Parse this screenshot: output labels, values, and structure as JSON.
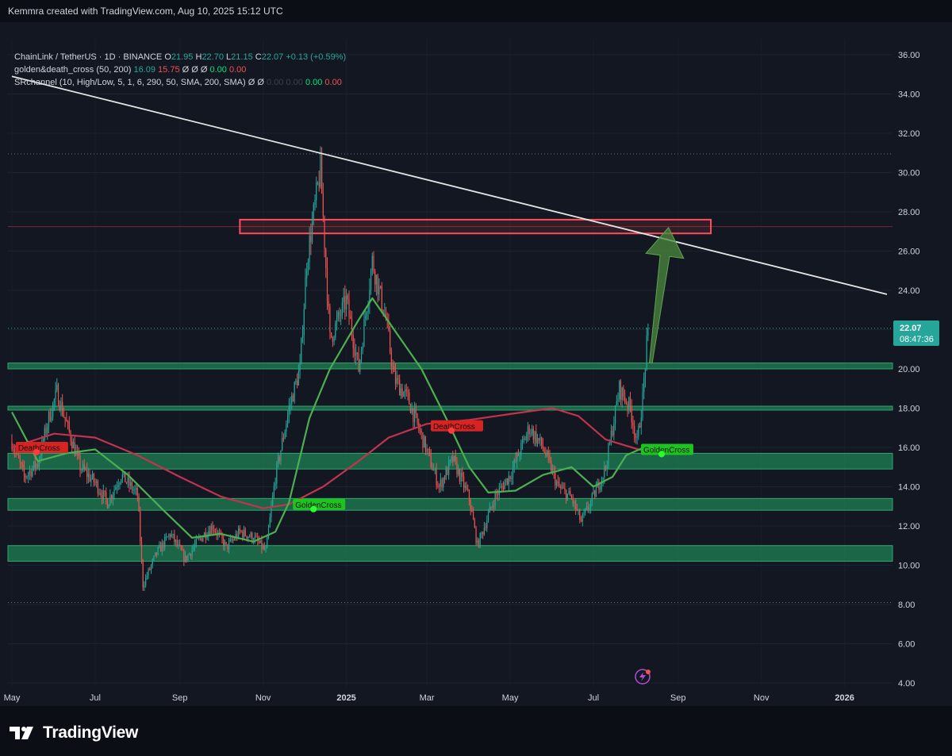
{
  "header": {
    "title": "Kemmra created with TradingView.com, Aug 10, 2025 15:12 UTC"
  },
  "legend": {
    "symbol": "ChainLink / TetherUS · 1D · BINANCE",
    "o_label": "O",
    "o_value": "21.95",
    "h_label": "H",
    "h_value": "22.70",
    "l_label": "L",
    "l_value": "21.15",
    "c_label": "C",
    "c_value": "22.07",
    "change": "+0.13 (+0.59%)",
    "ind1_name": "golden&death_cross (50, 200)",
    "ind1_v1": "16.09",
    "ind1_v2": "15.75",
    "ind1_sym": "Ø Ø Ø",
    "ind1_v3": "0.00",
    "ind1_v4": "0.00",
    "ind2_name": "SRchannel (10, High/Low, 5, 1, 6, 290, 50, SMA, 200, SMA)",
    "ind2_sym": "Ø Ø",
    "ind2_v1": "0.00",
    "ind2_v2": "0.00",
    "ind2_v3": "0.00",
    "ind2_v4": "0.00"
  },
  "price_label": {
    "price": "22.07",
    "countdown": "08:47:36"
  },
  "colors": {
    "background": "#131722",
    "up": "#26a69a",
    "down": "#ef5350",
    "ma50": "#4caf50",
    "ma200": "#c2334d",
    "zone": "#1f7a52",
    "resistance": "#ff4d5e",
    "trendline": "#e6e6e6",
    "arrow": "#4c8a3f",
    "accent": "#26a69a"
  },
  "brand": {
    "name": "TradingView"
  },
  "chart_data": {
    "type": "candlestick",
    "symbol": "LINK/USDT",
    "timeframe": "1D",
    "exchange": "BINANCE",
    "y_axis": {
      "min": 4,
      "max": 36,
      "ticks": [
        "4.00",
        "6.00",
        "8.00",
        "10.00",
        "12.00",
        "14.00",
        "16.00",
        "18.00",
        "20.00",
        "22.00",
        "24.00",
        "26.00",
        "28.00",
        "30.00",
        "32.00",
        "34.00",
        "36.00"
      ]
    },
    "x_axis": {
      "range": [
        "2024-05-01",
        "2026-02-01"
      ],
      "ticks": [
        "May",
        "Jul",
        "Sep",
        "Nov",
        "2025",
        "Mar",
        "May",
        "Jul",
        "Sep",
        "Nov",
        "2026"
      ]
    },
    "last": {
      "open": 21.95,
      "high": 22.7,
      "low": 21.15,
      "close": 22.07,
      "change": 0.13,
      "change_pct": 0.59
    },
    "price_path": [
      [
        "2024-05-01",
        16.3
      ],
      [
        "2024-05-10",
        14.5
      ],
      [
        "2024-05-20",
        15.2
      ],
      [
        "2024-05-28",
        17.5
      ],
      [
        "2024-06-03",
        18.8
      ],
      [
        "2024-06-10",
        17.2
      ],
      [
        "2024-06-20",
        15.0
      ],
      [
        "2024-07-01",
        14.2
      ],
      [
        "2024-07-10",
        13.2
      ],
      [
        "2024-07-20",
        14.6
      ],
      [
        "2024-08-01",
        13.6
      ],
      [
        "2024-08-05",
        9.0
      ],
      [
        "2024-08-15",
        10.6
      ],
      [
        "2024-08-25",
        11.6
      ],
      [
        "2024-09-05",
        10.3
      ],
      [
        "2024-09-15",
        11.3
      ],
      [
        "2024-09-25",
        12.0
      ],
      [
        "2024-10-05",
        10.9
      ],
      [
        "2024-10-15",
        11.7
      ],
      [
        "2024-10-25",
        11.4
      ],
      [
        "2024-11-03",
        10.7
      ],
      [
        "2024-11-10",
        14.5
      ],
      [
        "2024-11-20",
        18.0
      ],
      [
        "2024-11-28",
        20.0
      ],
      [
        "2024-12-03",
        25.5
      ],
      [
        "2024-12-13",
        30.2
      ],
      [
        "2024-12-20",
        21.5
      ],
      [
        "2025-01-01",
        23.5
      ],
      [
        "2025-01-10",
        20.0
      ],
      [
        "2025-01-20",
        25.5
      ],
      [
        "2025-01-30",
        22.5
      ],
      [
        "2025-02-05",
        19.5
      ],
      [
        "2025-02-15",
        18.5
      ],
      [
        "2025-02-28",
        16.0
      ],
      [
        "2025-03-10",
        14.0
      ],
      [
        "2025-03-20",
        15.4
      ],
      [
        "2025-04-01",
        13.4
      ],
      [
        "2025-04-07",
        11.0
      ],
      [
        "2025-04-20",
        13.5
      ],
      [
        "2025-05-01",
        14.6
      ],
      [
        "2025-05-15",
        17.0
      ],
      [
        "2025-05-25",
        16.0
      ],
      [
        "2025-06-05",
        14.0
      ],
      [
        "2025-06-15",
        13.4
      ],
      [
        "2025-06-22",
        12.2
      ],
      [
        "2025-07-01",
        13.5
      ],
      [
        "2025-07-10",
        15.0
      ],
      [
        "2025-07-20",
        19.0
      ],
      [
        "2025-07-28",
        18.0
      ],
      [
        "2025-08-02",
        16.2
      ],
      [
        "2025-08-06",
        18.5
      ],
      [
        "2025-08-10",
        22.07
      ]
    ],
    "sma_50": [
      [
        "2024-05-01",
        17.8
      ],
      [
        "2024-05-20",
        15.3
      ],
      [
        "2024-06-10",
        15.7
      ],
      [
        "2024-07-01",
        15.9
      ],
      [
        "2024-07-25",
        14.6
      ],
      [
        "2024-08-20",
        12.8
      ],
      [
        "2024-09-10",
        11.4
      ],
      [
        "2024-10-01",
        11.6
      ],
      [
        "2024-10-25",
        11.2
      ],
      [
        "2024-11-10",
        11.7
      ],
      [
        "2024-11-20",
        13.2
      ],
      [
        "2024-12-05",
        17.5
      ],
      [
        "2024-12-20",
        20.0
      ],
      [
        "2025-01-10",
        22.5
      ],
      [
        "2025-01-20",
        23.6
      ],
      [
        "2025-02-05",
        22.0
      ],
      [
        "2025-02-25",
        20.0
      ],
      [
        "2025-03-15",
        17.5
      ],
      [
        "2025-04-01",
        15.0
      ],
      [
        "2025-04-15",
        13.7
      ],
      [
        "2025-05-05",
        13.8
      ],
      [
        "2025-05-25",
        14.6
      ],
      [
        "2025-06-15",
        15.0
      ],
      [
        "2025-07-01",
        14.0
      ],
      [
        "2025-07-15",
        14.5
      ],
      [
        "2025-07-25",
        15.6
      ],
      [
        "2025-08-10",
        16.09
      ]
    ],
    "sma_200": [
      [
        "2024-05-01",
        16.0
      ],
      [
        "2024-06-01",
        16.7
      ],
      [
        "2024-07-01",
        16.5
      ],
      [
        "2024-08-01",
        15.6
      ],
      [
        "2024-09-01",
        14.5
      ],
      [
        "2024-10-01",
        13.5
      ],
      [
        "2024-11-01",
        12.9
      ],
      [
        "2024-11-20",
        13.1
      ],
      [
        "2024-12-15",
        14.0
      ],
      [
        "2025-01-10",
        15.3
      ],
      [
        "2025-02-01",
        16.5
      ],
      [
        "2025-03-01",
        17.2
      ],
      [
        "2025-04-01",
        17.4
      ],
      [
        "2025-05-01",
        17.7
      ],
      [
        "2025-06-01",
        18.0
      ],
      [
        "2025-06-20",
        17.6
      ],
      [
        "2025-07-10",
        16.4
      ],
      [
        "2025-08-10",
        15.75
      ]
    ],
    "support_zones": [
      [
        10.2,
        11.0
      ],
      [
        12.8,
        13.4
      ],
      [
        14.9,
        15.7
      ],
      [
        17.9,
        18.1
      ],
      [
        20.0,
        20.3
      ]
    ],
    "resistance_zone": [
      26.9,
      27.6
    ],
    "dotted_levels": [
      30.95,
      22.07,
      8.1
    ],
    "trendline": {
      "start": [
        "2024-05-01",
        34.9
      ],
      "end": [
        "2026-02-01",
        23.8
      ]
    },
    "signals": [
      {
        "date": "2024-05-05",
        "price": 16.0,
        "label": "DeathCross",
        "kind": "death"
      },
      {
        "date": "2024-11-24",
        "price": 13.1,
        "label": "GoldenCross",
        "kind": "golden"
      },
      {
        "date": "2025-03-05",
        "price": 17.1,
        "label": "DeathCross",
        "kind": "death"
      },
      {
        "date": "2025-08-06",
        "price": 15.9,
        "label": "GoldenCross",
        "kind": "golden"
      }
    ],
    "projection_arrow": {
      "from": [
        "2025-08-12",
        20.3
      ],
      "to": [
        "2025-08-25",
        27.2
      ]
    }
  }
}
